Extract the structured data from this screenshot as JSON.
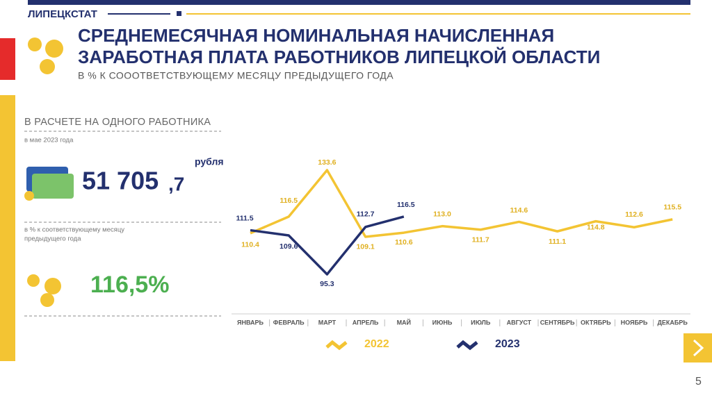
{
  "header": {
    "org": "ЛИПЕЦКСТАТ"
  },
  "title": [
    "СРЕДНЕМЕСЯЧНАЯ НОМИНАЛЬНАЯ НАЧИСЛЕННАЯ",
    "ЗАРАБОТНАЯ ПЛАТА РАБОТНИКОВ ЛИПЕЦКОЙ ОБЛАСТИ"
  ],
  "subtitle": "В % К СОООТВЕТСТВУЮЩЕМУ МЕСЯЦУ ПРЕДЫДУЩЕГО ГОДА",
  "panel": {
    "heading": "В РАСЧЕТЕ НА ОДНОГО РАБОТНИКА",
    "period": "в мае 2023 года",
    "amount_int": "51 705",
    "amount_dec": ",7",
    "unit": "рубля",
    "note": [
      "в % к соответствующему месяцу",
      "предыдущего года"
    ],
    "percent": "116,5%"
  },
  "chart_data": {
    "type": "line",
    "categories": [
      "ЯНВАРЬ",
      "ФЕВРАЛЬ",
      "МАРТ",
      "АПРЕЛЬ",
      "МАЙ",
      "ИЮНЬ",
      "ИЮЛЬ",
      "АВГУСТ",
      "СЕНТЯБРЬ",
      "ОКТЯБРЬ",
      "НОЯБРЬ",
      "ДЕКАБРЬ"
    ],
    "series": [
      {
        "name": "2022",
        "color": "#f3c433",
        "values": [
          110.4,
          116.5,
          133.6,
          109.1,
          110.6,
          113.0,
          111.7,
          114.6,
          111.1,
          114.8,
          112.6,
          115.5
        ],
        "value_labels": [
          "110.4",
          "116.5",
          "133.6",
          "109.1",
          "110.6",
          "113.0",
          "111.7",
          "114.6",
          "111.1",
          "114.8",
          "112.6",
          "115.5"
        ]
      },
      {
        "name": "2023",
        "color": "#23306e",
        "values": [
          111.5,
          109.6,
          95.3,
          112.7,
          116.5,
          null,
          null,
          null,
          null,
          null,
          null,
          null
        ],
        "value_labels": [
          "111.5",
          "109.6",
          "95.3",
          "112.7",
          "116.5",
          null,
          null,
          null,
          null,
          null,
          null,
          null
        ]
      }
    ]
  },
  "page_number": "5"
}
